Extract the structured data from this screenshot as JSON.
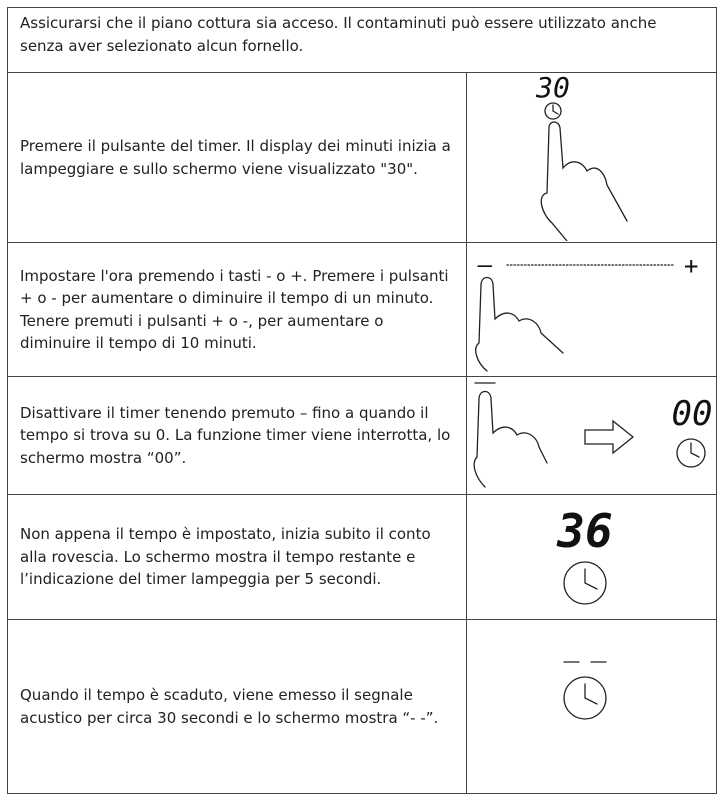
{
  "intro": "Assicurarsi che il piano cottura sia acceso. Il contaminuti può essere utilizzato anche senza aver selezionato alcun fornello.",
  "rows": [
    {
      "text": "Premere il pulsante del timer. Il display dei minuti inizia a lampeggiare e sullo schermo viene visualizzato \"30\".",
      "display": [
        "30"
      ]
    },
    {
      "text": "Impostare l'ora premendo i tasti - o +. Premere i pulsanti + o - per aumentare o diminuire il tempo di un minuto. Tenere premuti i pulsanti + o -, per aumentare o diminuire il tempo di 10 minuti.",
      "display": [
        "–",
        "+"
      ]
    },
    {
      "text": "Disattivare il timer tenendo premuto – fino a quando il tempo si trova su 0. La funzione timer viene interrotta, lo schermo mostra “00”.",
      "display": [
        "00"
      ]
    },
    {
      "text": "Non appena il tempo è impostato, inizia subito il conto alla rovescia. Lo schermo mostra il tempo restante e l’indicazione del timer lampeggia per 5 secondi.",
      "display": [
        "36"
      ]
    },
    {
      "text": "Quando il tempo è scaduto, viene emesso il segnale acustico per circa 30 secondi e lo schermo mostra “- -”.",
      "display": []
    }
  ]
}
